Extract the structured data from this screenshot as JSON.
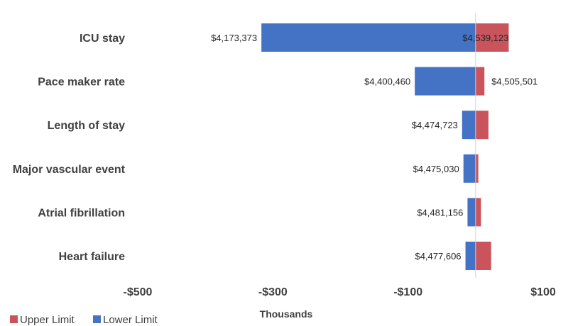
{
  "chart_data": {
    "type": "bar",
    "orientation": "horizontal",
    "layout": "tornado",
    "categories": [
      "ICU stay",
      "Pace maker rate",
      "Length of stay",
      "Major vascular event",
      "Atrial fibrillation",
      "Heart failure"
    ],
    "series": [
      {
        "name": "Upper Limit",
        "color": "#C9545C",
        "values": [
          49,
          13,
          19,
          4,
          8,
          23
        ],
        "data_labels": [
          "$4,539,123",
          "$4,505,501",
          "",
          "",
          "",
          ""
        ]
      },
      {
        "name": "Lower Limit",
        "color": "#4472C4",
        "values": [
          -317,
          -90,
          -20,
          -18,
          -12,
          -15
        ],
        "data_labels": [
          "$4,173,373",
          "$4,400,460",
          "$4,474,723",
          "$4,475,030",
          "$4,481,156",
          "$4,477,606"
        ]
      }
    ],
    "xlim": [
      -500,
      100
    ],
    "x_ticks": [
      -500,
      -300,
      -100,
      100
    ],
    "x_tick_labels": [
      "-$500",
      "-$300",
      "-$100",
      "$100"
    ],
    "xlabel": "Thousands",
    "ylabel": "",
    "title": "",
    "grid": false,
    "legend": {
      "position": "bottom-left",
      "entries": [
        "Upper Limit",
        "Lower Limit"
      ]
    }
  }
}
